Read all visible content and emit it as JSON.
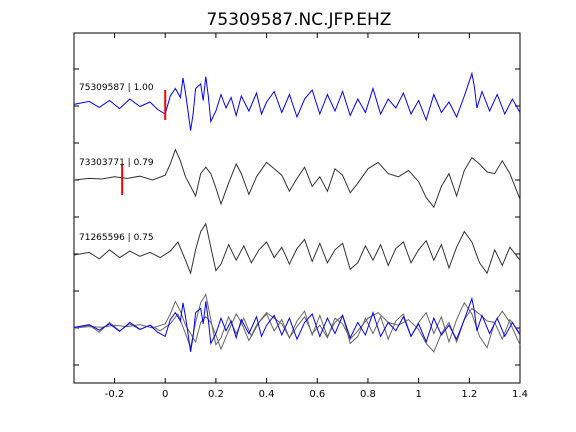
{
  "chart_data": {
    "type": "line",
    "title": "75309587.NC.JFP.EHZ",
    "xlabel": "",
    "ylabel": "",
    "xlim": [
      -0.36,
      1.4
    ],
    "xticks": [
      -0.2,
      0,
      0.2,
      0.4,
      0.6,
      0.8,
      1,
      1.2,
      1.4
    ],
    "xtick_labels": [
      "-0.2",
      "0",
      "0.2",
      "0.4",
      "0.6",
      "0.8",
      "1",
      "1.2",
      "1.4"
    ],
    "grid": false,
    "traces": [
      {
        "label": "75309587 | 1.00",
        "color": "#0000ff",
        "pick_time": 0.0,
        "pick_color": "#ff0000",
        "x": [
          -0.36,
          -0.3,
          -0.26,
          -0.22,
          -0.18,
          -0.14,
          -0.1,
          -0.06,
          -0.03,
          0.0,
          0.02,
          0.04,
          0.06,
          0.07,
          0.08,
          0.09,
          0.1,
          0.11,
          0.12,
          0.14,
          0.15,
          0.16,
          0.17,
          0.18,
          0.2,
          0.22,
          0.24,
          0.26,
          0.28,
          0.3,
          0.33,
          0.36,
          0.38,
          0.4,
          0.43,
          0.46,
          0.49,
          0.52,
          0.55,
          0.58,
          0.61,
          0.64,
          0.67,
          0.7,
          0.73,
          0.76,
          0.79,
          0.82,
          0.85,
          0.88,
          0.91,
          0.94,
          0.97,
          1.0,
          1.03,
          1.06,
          1.09,
          1.12,
          1.15,
          1.18,
          1.21,
          1.22,
          1.23,
          1.25,
          1.28,
          1.31,
          1.34,
          1.37,
          1.4
        ],
        "y": [
          0.02,
          0.12,
          -0.08,
          0.15,
          -0.12,
          0.2,
          -0.05,
          0.1,
          -0.15,
          -0.3,
          0.3,
          0.55,
          0.25,
          0.9,
          0.4,
          -0.2,
          -0.85,
          -0.3,
          0.55,
          0.7,
          0.15,
          0.95,
          0.3,
          -0.55,
          -0.2,
          0.35,
          -0.1,
          0.25,
          -0.35,
          0.3,
          -0.2,
          0.4,
          -0.3,
          0.1,
          0.45,
          -0.25,
          0.35,
          -0.4,
          0.2,
          0.5,
          -0.3,
          0.35,
          -0.2,
          0.45,
          -0.35,
          0.2,
          -0.25,
          0.55,
          -0.3,
          0.2,
          -0.1,
          0.4,
          -0.3,
          0.15,
          -0.5,
          0.35,
          -0.25,
          0.1,
          -0.4,
          0.3,
          1.05,
          0.6,
          -0.1,
          0.45,
          -0.2,
          0.35,
          -0.3,
          0.2,
          -0.25
        ]
      },
      {
        "label": "73303771 | 0.79",
        "color": "#333333",
        "pick_time": -0.17,
        "pick_color": "#ff0000",
        "x": [
          -0.36,
          -0.3,
          -0.25,
          -0.2,
          -0.15,
          -0.1,
          -0.05,
          0.0,
          0.02,
          0.04,
          0.06,
          0.08,
          0.1,
          0.12,
          0.14,
          0.16,
          0.18,
          0.2,
          0.22,
          0.25,
          0.28,
          0.3,
          0.33,
          0.36,
          0.4,
          0.43,
          0.46,
          0.49,
          0.52,
          0.55,
          0.58,
          0.61,
          0.64,
          0.67,
          0.7,
          0.73,
          0.76,
          0.8,
          0.84,
          0.88,
          0.92,
          0.96,
          1.0,
          1.03,
          1.06,
          1.09,
          1.12,
          1.15,
          1.18,
          1.21,
          1.24,
          1.27,
          1.3,
          1.33,
          1.36,
          1.4
        ],
        "y": [
          0.0,
          0.05,
          0.03,
          0.1,
          0.05,
          0.12,
          0.0,
          0.15,
          0.5,
          0.95,
          0.6,
          0.1,
          -0.2,
          -0.5,
          0.2,
          0.4,
          0.2,
          -0.25,
          -0.75,
          -0.1,
          0.5,
          0.2,
          -0.45,
          0.1,
          0.55,
          0.35,
          0.15,
          -0.35,
          0.05,
          0.4,
          -0.2,
          0.1,
          -0.35,
          0.35,
          0.15,
          -0.4,
          -0.1,
          0.35,
          0.55,
          0.2,
          0.1,
          0.3,
          -0.05,
          -0.55,
          -0.85,
          -0.2,
          0.2,
          -0.5,
          0.3,
          0.7,
          0.5,
          0.25,
          0.2,
          0.6,
          0.2,
          -0.6
        ]
      },
      {
        "label": "71265596 | 0.75",
        "color": "#333333",
        "pick_time": null,
        "pick_color": "#ff0000",
        "x": [
          -0.36,
          -0.3,
          -0.26,
          -0.22,
          -0.18,
          -0.14,
          -0.1,
          -0.06,
          -0.02,
          0.02,
          0.05,
          0.08,
          0.1,
          0.12,
          0.14,
          0.16,
          0.18,
          0.2,
          0.22,
          0.25,
          0.28,
          0.31,
          0.34,
          0.37,
          0.4,
          0.43,
          0.46,
          0.49,
          0.52,
          0.55,
          0.58,
          0.61,
          0.64,
          0.67,
          0.7,
          0.73,
          0.76,
          0.79,
          0.82,
          0.85,
          0.88,
          0.91,
          0.94,
          0.97,
          1.0,
          1.03,
          1.06,
          1.09,
          1.12,
          1.15,
          1.18,
          1.21,
          1.24,
          1.27,
          1.3,
          1.33,
          1.36,
          1.4
        ],
        "y": [
          0.0,
          0.1,
          -0.15,
          0.2,
          -0.1,
          0.15,
          -0.05,
          0.1,
          -0.1,
          0.15,
          0.5,
          -0.2,
          -0.7,
          0.2,
          0.9,
          1.2,
          0.3,
          -0.6,
          -0.35,
          0.4,
          -0.2,
          0.35,
          -0.3,
          0.2,
          0.5,
          -0.1,
          0.3,
          -0.35,
          0.25,
          0.6,
          -0.25,
          0.45,
          -0.3,
          0.2,
          0.45,
          -0.55,
          -0.3,
          0.35,
          -0.2,
          0.4,
          -0.4,
          0.25,
          0.5,
          -0.3,
          0.2,
          0.55,
          -0.2,
          0.4,
          -0.5,
          0.3,
          0.9,
          0.5,
          -0.3,
          -0.7,
          0.2,
          -0.4,
          0.3,
          -0.2
        ]
      }
    ],
    "overlay": {
      "description_series": [
        "75309587 | 1.00",
        "73303771 | 0.79",
        "71265596 | 0.75"
      ]
    }
  }
}
